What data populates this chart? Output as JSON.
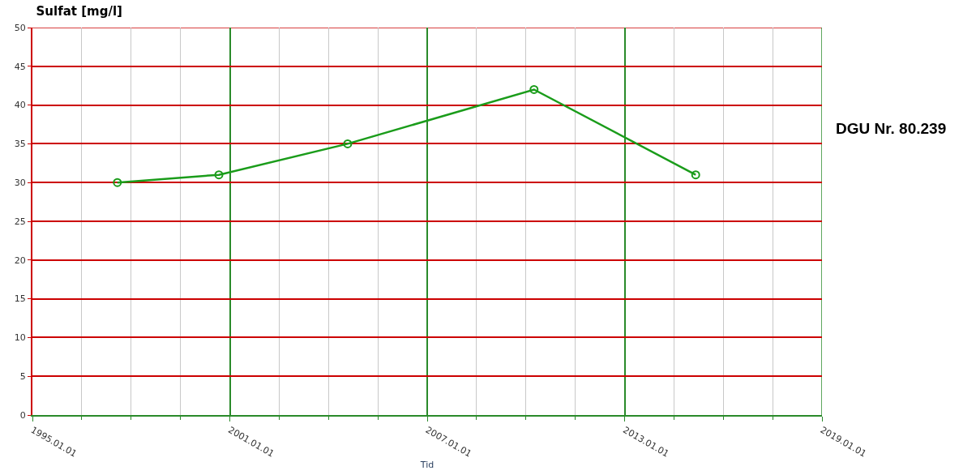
{
  "chart_data": {
    "type": "line",
    "title": "Sulfat [mg/l]",
    "xlabel": "Tid",
    "annotations": [
      "DGU Nr. 80.239"
    ],
    "x": [
      "1997-08-01",
      "2000-09-01",
      "2004-08-01",
      "2010-04-01",
      "2015-03-01"
    ],
    "series": [
      {
        "color": "#1a9c1a",
        "values": [
          30,
          31,
          35,
          42,
          31
        ]
      }
    ],
    "xlim": [
      "1995-01-01",
      "2019-01-01"
    ],
    "xticks": [
      {
        "value": "1995-01-01",
        "label": "1995.01.01"
      },
      {
        "value": "1996-07-01",
        "label": null
      },
      {
        "value": "1998-01-01",
        "label": null
      },
      {
        "value": "1999-07-01",
        "label": null
      },
      {
        "value": "2001-01-01",
        "label": "2001.01.01"
      },
      {
        "value": "2002-07-01",
        "label": null
      },
      {
        "value": "2004-01-01",
        "label": null
      },
      {
        "value": "2005-07-01",
        "label": null
      },
      {
        "value": "2007-01-01",
        "label": "2007.01.01"
      },
      {
        "value": "2008-07-01",
        "label": null
      },
      {
        "value": "2010-01-01",
        "label": null
      },
      {
        "value": "2011-07-01",
        "label": null
      },
      {
        "value": "2013-01-01",
        "label": "2013.01.01"
      },
      {
        "value": "2014-07-01",
        "label": null
      },
      {
        "value": "2016-01-01",
        "label": null
      },
      {
        "value": "2017-07-01",
        "label": null
      },
      {
        "value": "2019-01-01",
        "label": "2019.01.01"
      }
    ],
    "ylim": [
      0,
      50
    ],
    "yticks": [
      0,
      5,
      10,
      15,
      20,
      25,
      30,
      35,
      40,
      45,
      50
    ],
    "grid": true,
    "marker": "circle",
    "line_style": "solid"
  }
}
